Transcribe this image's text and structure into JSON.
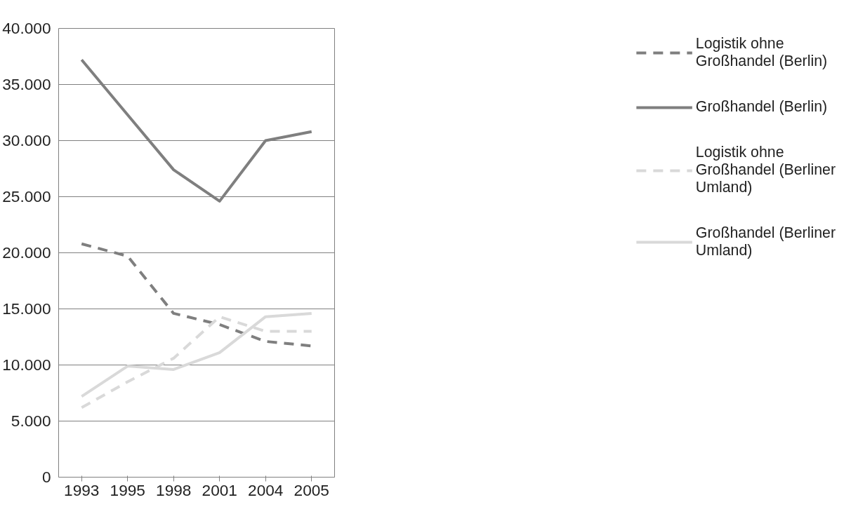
{
  "chart_data": {
    "type": "line",
    "categories": [
      "1993",
      "1995",
      "1998",
      "2001",
      "2004",
      "2005"
    ],
    "ylim": [
      0,
      40000
    ],
    "yticks": [
      0,
      {
        "value": 5000,
        "label": "5.000"
      },
      {
        "value": 10000,
        "label": "10.000"
      },
      {
        "value": 15000,
        "label": "15.000"
      },
      {
        "value": 20000,
        "label": "20.000"
      },
      {
        "value": 25000,
        "label": "25.000"
      },
      {
        "value": 30000,
        "label": "30.000"
      },
      {
        "value": 35000,
        "label": "35.000"
      },
      {
        "value": 40000,
        "label": "40.000"
      }
    ],
    "grid": "y",
    "legend": "right",
    "marker": "none",
    "series": [
      {
        "name": "Logistik ohne Großhandel (Berlin)",
        "color": "#7f7f7f",
        "line_style": "dashed",
        "values": [
          20800,
          19700,
          14600,
          13600,
          12100,
          11700
        ]
      },
      {
        "name": "Großhandel (Berlin)",
        "color": "#7f7f7f",
        "line_style": "solid",
        "values": [
          37200,
          32300,
          27400,
          24600,
          30000,
          30800
        ]
      },
      {
        "name": "Logistik ohne Großhandel (Berliner Umland)",
        "color": "#d9d9d9",
        "line_style": "dashed",
        "values": [
          6200,
          8500,
          10600,
          14300,
          13000,
          13000
        ]
      },
      {
        "name": "Großhandel (Berliner Umland)",
        "color": "#d9d9d9",
        "line_style": "solid",
        "values": [
          7200,
          9900,
          9600,
          11100,
          14300,
          14600
        ]
      }
    ]
  }
}
